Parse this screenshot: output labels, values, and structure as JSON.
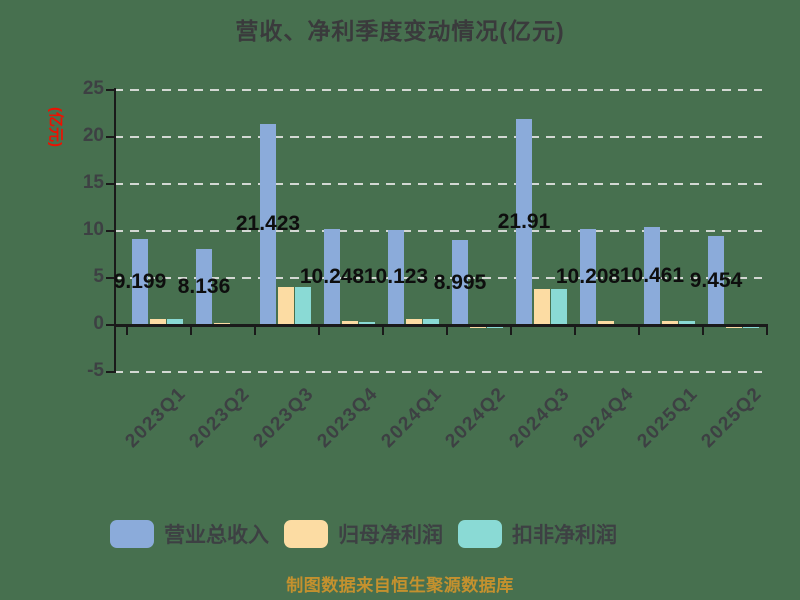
{
  "chart_data": {
    "type": "bar",
    "title": "营收、净利季度变动情况(亿元)",
    "ylabel": "(亿元)",
    "categories": [
      "2023Q1",
      "2023Q2",
      "2023Q3",
      "2023Q4",
      "2024Q1",
      "2024Q2",
      "2024Q3",
      "2024Q4",
      "2025Q1",
      "2025Q2"
    ],
    "series": [
      {
        "name": "营业总收入",
        "color": "#8babda",
        "values": [
          9.199,
          8.136,
          21.423,
          10.248,
          10.123,
          8.995,
          21.91,
          10.208,
          10.461,
          9.454
        ]
      },
      {
        "name": "归母净利润",
        "color": "#fcdca3",
        "values": [
          0.65,
          0.2,
          4.05,
          0.45,
          0.6,
          -0.08,
          3.85,
          0.4,
          0.45,
          -0.06
        ]
      },
      {
        "name": "扣非净利润",
        "color": "#8adad5",
        "values": [
          0.6,
          0.12,
          4.0,
          0.3,
          0.6,
          -0.2,
          3.8,
          0.1,
          0.42,
          -0.12
        ]
      }
    ],
    "value_labels": [
      "9.199",
      "8.136",
      "21.423",
      "10.248",
      "10.123",
      "8.995",
      "21.91",
      "10.208",
      "10.461",
      "9.454"
    ],
    "labeled_series": "营业总收入",
    "ylim": [
      -5,
      25
    ],
    "yticks": [
      25,
      20,
      15,
      10,
      5,
      0,
      -5
    ],
    "grid": "dashed-horizontal",
    "legend_position": "bottom"
  },
  "footer": {
    "source_note": "制图数据来自恒生聚源数据库"
  },
  "colors": {
    "background": "#47704f",
    "axis": "#1a1a1a",
    "grid": "#d3d8d3",
    "title": "#3a3a3c",
    "tick_label": "#3d4043",
    "value_label": "#0e0e0e",
    "ylabel": "#ee1000",
    "footer": "#c4912e"
  }
}
